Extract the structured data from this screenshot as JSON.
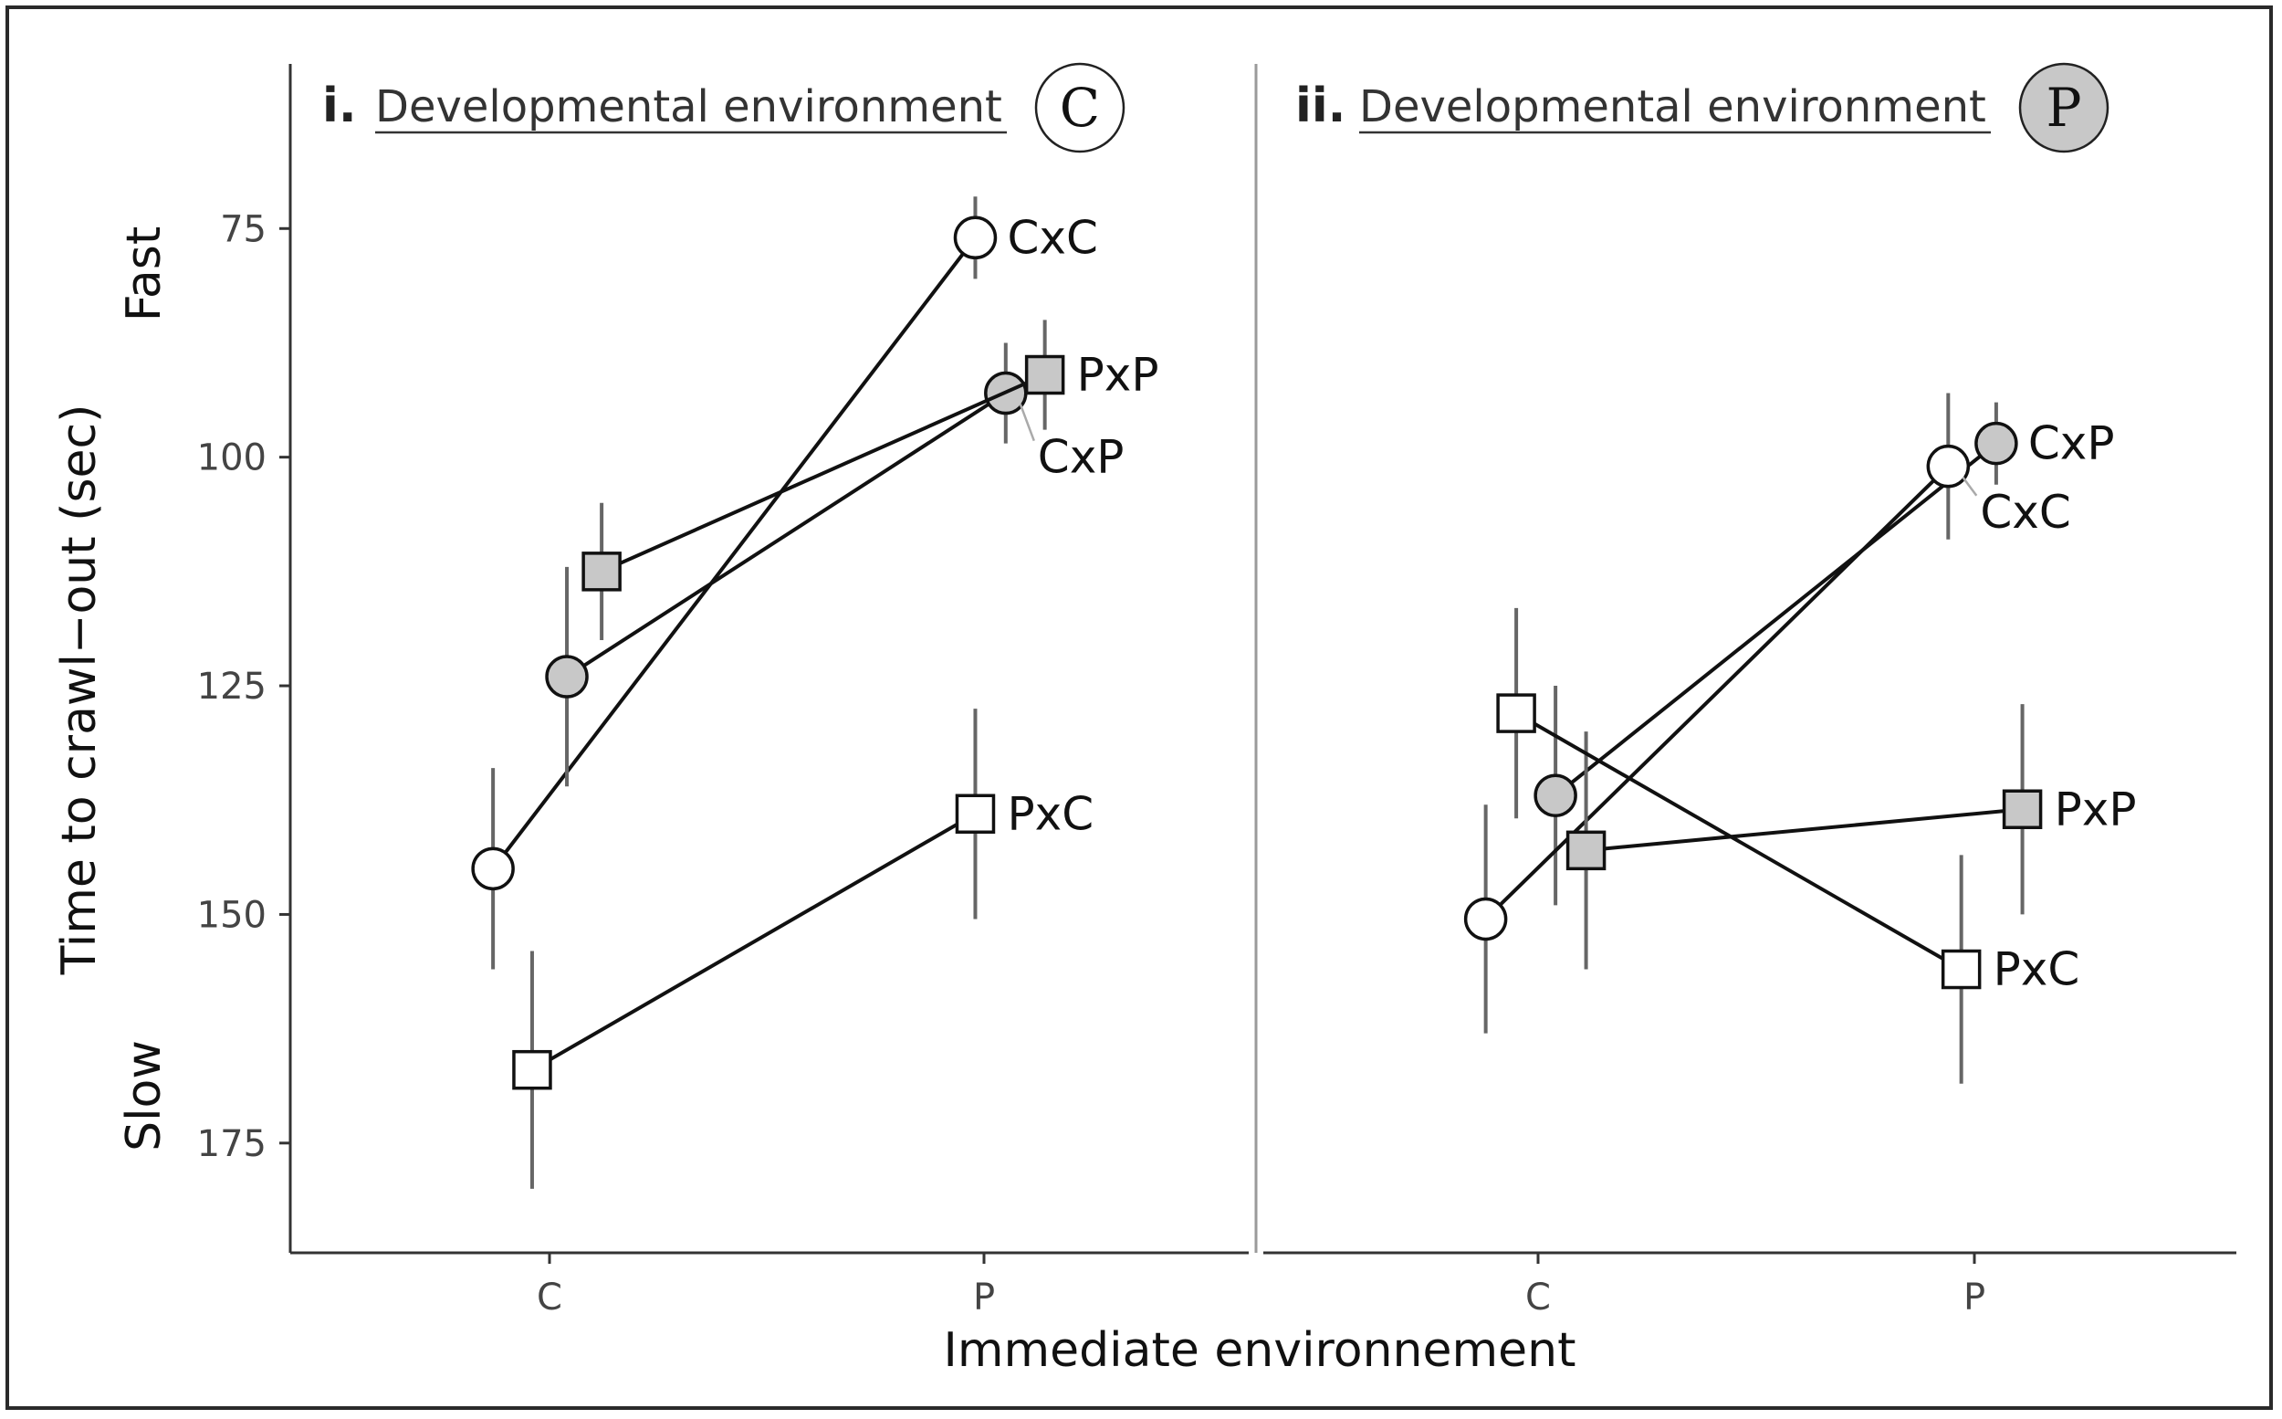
{
  "chart_data": {
    "type": "line",
    "ylabel": "Time to crawl−out (sec)",
    "xlabel": "Immediate environnement",
    "y_direction": "reversed",
    "ylim": [
      57,
      187
    ],
    "yticks": [
      75,
      100,
      125,
      150,
      175
    ],
    "y_annotations": {
      "top": "Fast",
      "bottom": "Slow"
    },
    "categories": [
      "C",
      "P"
    ],
    "panels": [
      {
        "number": "i.",
        "title": "Developmental environment",
        "badge": "C",
        "badge_fill": "#ffffff",
        "series": [
          {
            "name": "CxC",
            "marker": "circle",
            "fill": "#ffffff",
            "x": [
              -0.13,
              0.98
            ],
            "values": [
              145,
              76
            ],
            "errors": [
              11,
              4.5
            ],
            "label_y": 76
          },
          {
            "name": "CxP",
            "marker": "circle",
            "fill": "#c8c8c8",
            "x": [
              0.04,
              1.05
            ],
            "values": [
              124,
              93
            ],
            "errors": [
              12,
              5.5
            ],
            "label_y": 100
          },
          {
            "name": "PxP",
            "marker": "square",
            "fill": "#c8c8c8",
            "x": [
              0.12,
              1.14
            ],
            "values": [
              112.5,
              91
            ],
            "errors": [
              7.5,
              6
            ],
            "label_y": 91
          },
          {
            "name": "PxC",
            "marker": "square",
            "fill": "#ffffff",
            "x": [
              -0.04,
              0.98
            ],
            "values": [
              167,
              139
            ],
            "errors": [
              13,
              11.5
            ],
            "label_y": 139
          }
        ]
      },
      {
        "number": "ii.",
        "title": "Developmental environment",
        "badge": "P",
        "badge_fill": "#c8c8c8",
        "series": [
          {
            "name": "CxP",
            "marker": "circle",
            "fill": "#c8c8c8",
            "x": [
              0.04,
              1.05
            ],
            "values": [
              137,
              98.5
            ],
            "errors": [
              12,
              4.5
            ],
            "label_y": 98.5
          },
          {
            "name": "CxC",
            "marker": "circle",
            "fill": "#ffffff",
            "x": [
              -0.12,
              0.94
            ],
            "values": [
              150.5,
              101
            ],
            "errors": [
              12.5,
              8
            ],
            "label_y": 106
          },
          {
            "name": "PxP",
            "marker": "square",
            "fill": "#c8c8c8",
            "x": [
              0.11,
              1.11
            ],
            "values": [
              143,
              138.5
            ],
            "errors": [
              13,
              11.5
            ],
            "label_y": 138.5
          },
          {
            "name": "PxC",
            "marker": "square",
            "fill": "#ffffff",
            "x": [
              -0.05,
              0.97
            ],
            "values": [
              128,
              156
            ],
            "errors": [
              11.5,
              12.5
            ],
            "label_y": 156
          }
        ]
      }
    ]
  }
}
